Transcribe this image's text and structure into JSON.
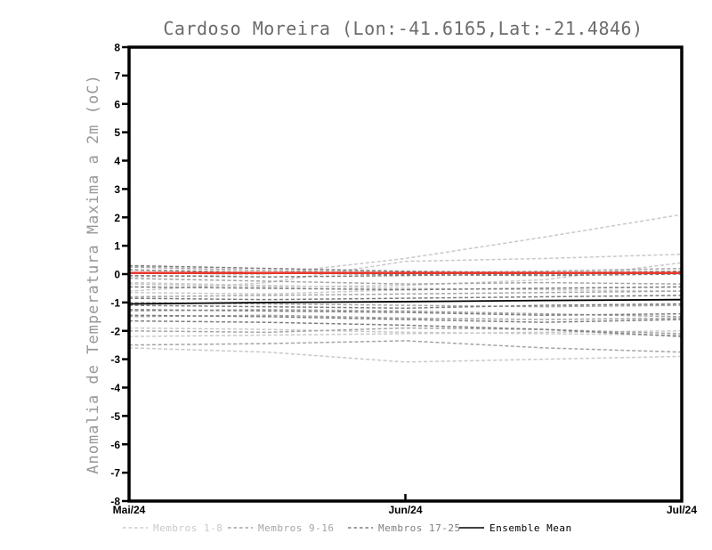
{
  "title_color": "#6b6b6b",
  "axis_label_color": "#989898",
  "frame_color": "#000000",
  "legend": {
    "items": [
      {
        "label": "Membros 1-8",
        "color": "#c9c9c9",
        "dashed": true
      },
      {
        "label": "Membros 9-16",
        "color": "#a4a4a4",
        "dashed": true
      },
      {
        "label": "Membros 17-25",
        "color": "#7d7d7d",
        "dashed": true
      },
      {
        "label": "Ensemble Mean",
        "color": "#000000",
        "dashed": false
      }
    ]
  },
  "chart_data": {
    "type": "line",
    "title": "Cardoso Moreira (Lon:-41.6165,Lat:-21.4846)",
    "xlabel": "",
    "ylabel": "Anomalia de Temperatura Maxima a 2m (oC)",
    "ylim": [
      -8,
      8
    ],
    "y_tick_step": 1,
    "y_ticks": [
      8,
      7,
      6,
      5,
      4,
      3,
      2,
      1,
      0,
      -1,
      -2,
      -3,
      -4,
      -5,
      -6,
      -7,
      -8
    ],
    "x_ticks": [
      {
        "label": "Mai/24",
        "t": 0.0
      },
      {
        "label": "Jun/24",
        "t": 0.5
      },
      {
        "label": "Jul/24",
        "t": 1.0
      }
    ],
    "x": [
      0,
      0.25,
      0.5,
      0.75,
      1
    ],
    "grid": false,
    "legend_position": "bottom",
    "groups": [
      {
        "name": "Membros 1-8",
        "color": "#c9c9c9",
        "members": [
          [
            -0.1,
            0.0,
            0.55,
            1.3,
            2.1
          ],
          [
            -0.6,
            -0.3,
            0.45,
            0.55,
            0.7
          ],
          [
            -0.35,
            -0.45,
            -0.4,
            -0.2,
            0.4
          ],
          [
            -0.65,
            -0.7,
            -0.55,
            -0.5,
            -0.45
          ],
          [
            -2.2,
            -2.15,
            -2.1,
            -2.05,
            -2.0
          ],
          [
            -2.6,
            -2.75,
            -3.1,
            -3.0,
            -2.9
          ],
          [
            -0.3,
            -0.4,
            -0.5,
            -0.55,
            -0.6
          ],
          [
            -1.9,
            -1.95,
            -2.05,
            -2.1,
            -2.15
          ]
        ]
      },
      {
        "name": "Membros 9-16",
        "color": "#a4a4a4",
        "members": [
          [
            0.25,
            0.12,
            0.05,
            0.1,
            0.2
          ],
          [
            -0.15,
            -0.25,
            -0.35,
            -0.3,
            -0.35
          ],
          [
            -0.8,
            -0.75,
            -0.7,
            -0.65,
            -0.6
          ],
          [
            -1.0,
            -1.05,
            -1.1,
            -1.15,
            -1.1
          ],
          [
            -1.3,
            -1.25,
            -1.3,
            -1.4,
            -1.5
          ],
          [
            -1.5,
            -1.45,
            -1.55,
            -1.6,
            -1.55
          ],
          [
            -2.0,
            -2.05,
            -1.9,
            -1.95,
            -2.1
          ],
          [
            -2.5,
            -2.45,
            -2.35,
            -2.6,
            -2.75
          ]
        ]
      },
      {
        "name": "Membros 17-25",
        "color": "#7d7d7d",
        "members": [
          [
            0.3,
            0.2,
            0.1,
            0.05,
            0.1
          ],
          [
            0.15,
            0.05,
            -0.02,
            -0.05,
            0.0
          ],
          [
            -0.05,
            -0.1,
            -0.05,
            0.0,
            0.05
          ],
          [
            -0.45,
            -0.5,
            -0.55,
            -0.5,
            -0.45
          ],
          [
            -0.85,
            -0.9,
            -0.85,
            -0.8,
            -0.75
          ],
          [
            -1.1,
            -1.15,
            -1.2,
            -1.1,
            -1.05
          ],
          [
            -1.25,
            -1.3,
            -1.35,
            -1.45,
            -1.4
          ],
          [
            -1.45,
            -1.5,
            -1.6,
            -1.7,
            -1.6
          ],
          [
            -1.65,
            -1.7,
            -1.8,
            -1.95,
            -2.2
          ]
        ]
      }
    ],
    "reference_line": {
      "name": "zero-reference",
      "color": "#e8392e",
      "values": [
        0.04,
        0.04,
        0.04,
        0.04,
        0.04
      ]
    },
    "ensemble_mean": {
      "name": "Ensemble Mean",
      "color": "#000000",
      "values": [
        -1.05,
        -1.0,
        -0.97,
        -0.93,
        -0.9
      ]
    }
  }
}
